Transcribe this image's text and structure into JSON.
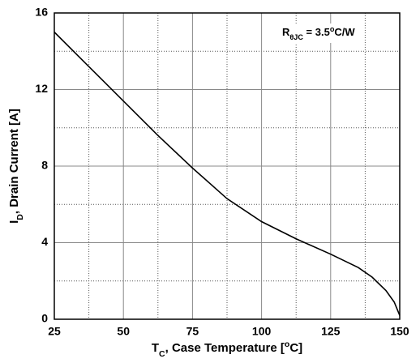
{
  "chart_data": {
    "type": "line",
    "x_label": [
      {
        "text": "T"
      },
      {
        "text": "C",
        "shift": "sub"
      },
      {
        "text": ", Case Temperature ["
      },
      {
        "text": "o",
        "shift": "sup"
      },
      {
        "text": "C]"
      }
    ],
    "y_label": [
      {
        "text": "I"
      },
      {
        "text": "D",
        "shift": "sub"
      },
      {
        "text": ", Drain Current [A]"
      }
    ],
    "annotation": [
      {
        "text": "R"
      },
      {
        "text": "θJC",
        "shift": "sub"
      },
      {
        "text": " = 3.5"
      },
      {
        "text": "o",
        "shift": "sup"
      },
      {
        "text": "C/W"
      }
    ],
    "x": [
      25,
      37.5,
      50,
      62.5,
      75,
      87.5,
      100,
      112.5,
      125,
      135,
      140,
      145,
      148,
      150
    ],
    "series": [
      {
        "color": "#000000",
        "values": [
          15.0,
          13.2,
          11.4,
          9.6,
          7.9,
          6.3,
          5.1,
          4.2,
          3.4,
          2.7,
          2.2,
          1.5,
          0.9,
          0.2
        ]
      }
    ],
    "xlim": [
      25,
      150
    ],
    "xticks": [
      25,
      50,
      75,
      100,
      125,
      150
    ],
    "ylim": [
      0,
      16
    ],
    "yticks": [
      0,
      4,
      8,
      12,
      16
    ],
    "grid": true,
    "minor_grid": true
  }
}
